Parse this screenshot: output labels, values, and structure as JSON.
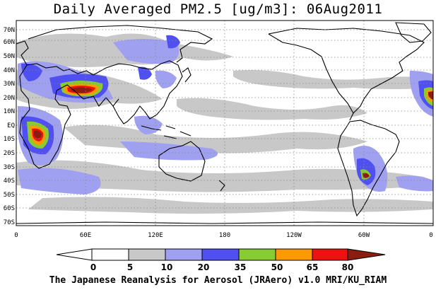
{
  "title": "Daily Averaged PM2.5 [ug/m3]: 06Aug2011",
  "footer": "The Japanese Reanalysis for Aerosol (JRAero) v1.0 MRI/KU_RIAM",
  "lat_labels": [
    "70N",
    "60N",
    "50N",
    "40N",
    "30N",
    "20N",
    "10N",
    "EQ",
    "10S",
    "20S",
    "30S",
    "40S",
    "50S",
    "60S",
    "70S"
  ],
  "lon_labels": [
    "0",
    "60E",
    "120E",
    "180",
    "120W",
    "60W",
    "0"
  ],
  "colorbar": {
    "tick_labels": [
      "0",
      "5",
      "10",
      "20",
      "35",
      "50",
      "65",
      "80"
    ],
    "colors": [
      "#ffffff",
      "#c8c8c8",
      "#a0a0f0",
      "#5050f0",
      "#88cc33",
      "#ff9900",
      "#ee1111",
      "#8b1c10"
    ]
  },
  "units": "ug/m3",
  "date": "06Aug2011"
}
